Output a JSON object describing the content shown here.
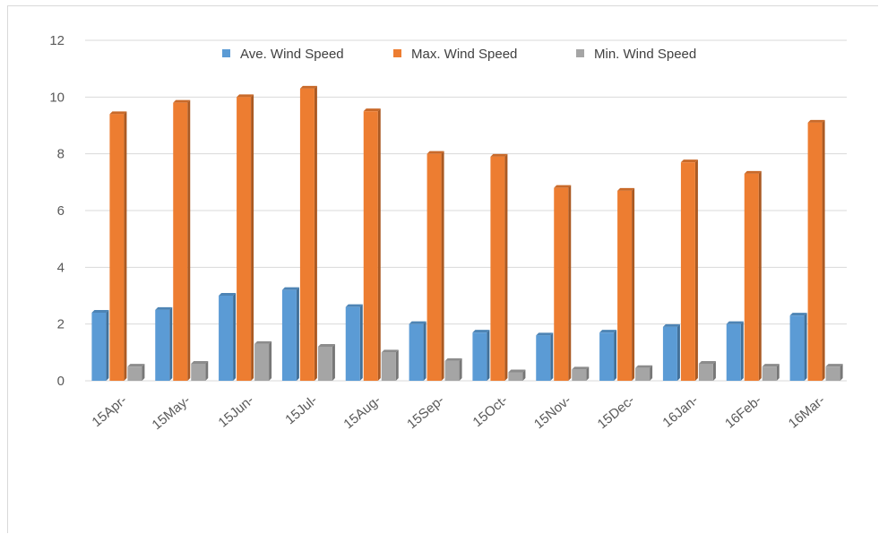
{
  "chart_data": {
    "type": "bar",
    "title": "",
    "xlabel": "",
    "ylabel": "",
    "categories": [
      "15Apr-",
      "15May-",
      "15Jun-",
      "15Jul-",
      "15Aug-",
      "15Sep-",
      "15Oct-",
      "15Nov-",
      "15Dec-",
      "16Jan-",
      "16Feb-",
      "16Mar-"
    ],
    "series": [
      {
        "name": "Ave. Wind Speed",
        "color": "#5b9bd5",
        "values": [
          2.4,
          2.5,
          3.0,
          3.2,
          2.6,
          2.0,
          1.7,
          1.6,
          1.7,
          1.9,
          2.0,
          2.3
        ]
      },
      {
        "name": "Max. Wind Speed",
        "color": "#ed7d31",
        "values": [
          9.4,
          9.8,
          10.0,
          10.3,
          9.5,
          8.0,
          7.9,
          6.8,
          6.7,
          7.7,
          7.3,
          9.1
        ]
      },
      {
        "name": "Min. Wind Speed",
        "color": "#a5a5a5",
        "values": [
          0.5,
          0.6,
          1.3,
          1.2,
          1.0,
          0.7,
          0.3,
          0.4,
          0.45,
          0.6,
          0.5,
          0.5
        ]
      }
    ],
    "ylim": [
      0,
      12
    ],
    "yticks": [
      0,
      2,
      4,
      6,
      8,
      10,
      12
    ],
    "grid": true,
    "legend_position": "top"
  }
}
